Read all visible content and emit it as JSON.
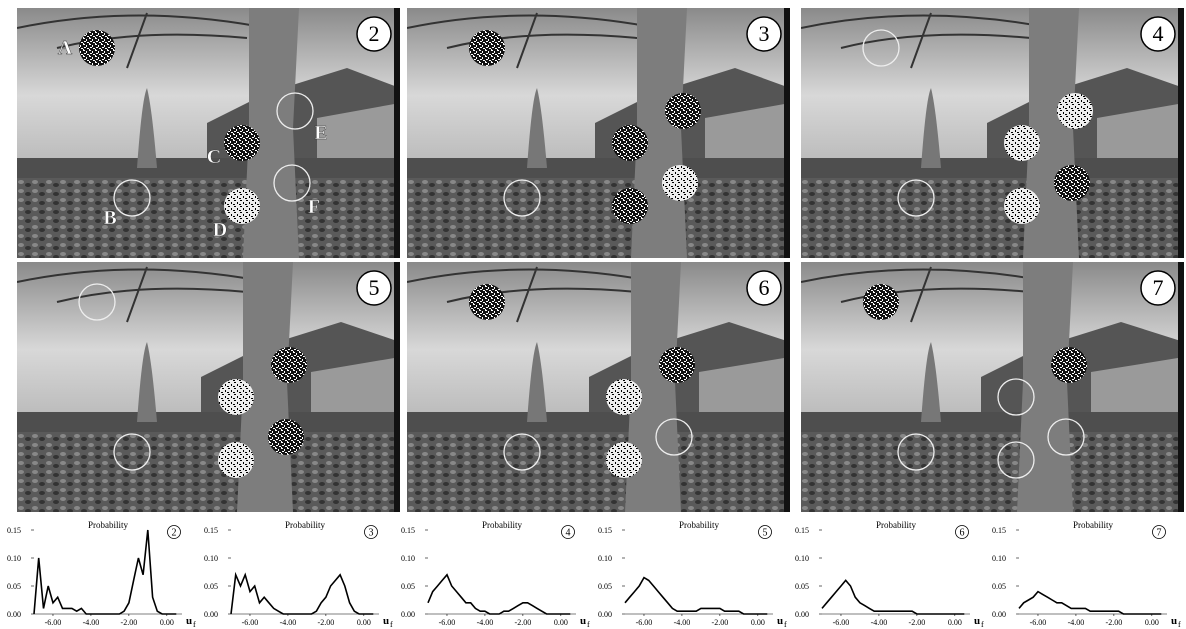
{
  "frames": [
    {
      "number": "2",
      "point_labels": [
        "A",
        "B",
        "C",
        "D",
        "E",
        "F"
      ]
    },
    {
      "number": "3"
    },
    {
      "number": "4"
    },
    {
      "number": "5"
    },
    {
      "number": "6"
    },
    {
      "number": "7"
    }
  ],
  "chart_data": [
    {
      "type": "line",
      "title": "Probability",
      "panel_number": "2",
      "xlabel": "u",
      "xlabel_subscript": "f",
      "x": [
        -7,
        -6.75,
        -6.5,
        -6.25,
        -6,
        -5.75,
        -5.5,
        -5.25,
        -5,
        -4.75,
        -4.5,
        -4.25,
        -4,
        -3.75,
        -3.5,
        -3.25,
        -3,
        -2.75,
        -2.5,
        -2.25,
        -2,
        -1.75,
        -1.5,
        -1.25,
        -1,
        -0.75,
        -0.5,
        -0.25,
        0,
        0.25,
        0.5
      ],
      "series": [
        {
          "color": "#000000",
          "values": [
            0,
            0.1,
            0.01,
            0.05,
            0.02,
            0.03,
            0.01,
            0.01,
            0.01,
            0.005,
            0.01,
            0,
            0,
            0,
            0,
            0,
            0,
            0,
            0,
            0.005,
            0.02,
            0.06,
            0.1,
            0.07,
            0.15,
            0.03,
            0.005,
            0,
            0,
            0,
            0
          ]
        }
      ],
      "xlim": [
        -7,
        0.8
      ],
      "ylim": [
        0,
        0.15
      ],
      "xticks": [
        {
          "value": -6,
          "label": "-6.00"
        },
        {
          "value": -4,
          "label": "-4.00"
        },
        {
          "value": -2,
          "label": "-2.00"
        },
        {
          "value": 0,
          "label": "0.00"
        }
      ],
      "yticks": [
        {
          "value": 0,
          "label": "0.00"
        },
        {
          "value": 0.05,
          "label": "0.05"
        },
        {
          "value": 0.1,
          "label": "0.10"
        },
        {
          "value": 0.15,
          "label": "0.15"
        }
      ]
    },
    {
      "type": "line",
      "title": "Probability",
      "panel_number": "3",
      "xlabel": "u",
      "xlabel_subscript": "f",
      "x": [
        -7,
        -6.75,
        -6.5,
        -6.25,
        -6,
        -5.75,
        -5.5,
        -5.25,
        -5,
        -4.75,
        -4.5,
        -4.25,
        -4,
        -3.75,
        -3.5,
        -3.25,
        -3,
        -2.75,
        -2.5,
        -2.25,
        -2,
        -1.75,
        -1.5,
        -1.25,
        -1,
        -0.75,
        -0.5,
        -0.25,
        0,
        0.25,
        0.5
      ],
      "series": [
        {
          "color": "#000000",
          "values": [
            0,
            0.07,
            0.05,
            0.07,
            0.04,
            0.05,
            0.02,
            0.03,
            0.02,
            0.01,
            0.005,
            0,
            0,
            0,
            0,
            0,
            0,
            0,
            0.005,
            0.02,
            0.03,
            0.05,
            0.06,
            0.07,
            0.05,
            0.02,
            0.005,
            0,
            0,
            0,
            0
          ]
        }
      ],
      "xlim": [
        -7,
        0.8
      ],
      "ylim": [
        0,
        0.15
      ],
      "xticks": [
        {
          "value": -6,
          "label": "-6.00"
        },
        {
          "value": -4,
          "label": "-4.00"
        },
        {
          "value": -2,
          "label": "-2.00"
        },
        {
          "value": 0,
          "label": "0.00"
        }
      ],
      "yticks": [
        {
          "value": 0,
          "label": "0.00"
        },
        {
          "value": 0.05,
          "label": "0.05"
        },
        {
          "value": 0.1,
          "label": "0.10"
        },
        {
          "value": 0.15,
          "label": "0.15"
        }
      ]
    },
    {
      "type": "line",
      "title": "Probability",
      "panel_number": "4",
      "xlabel": "u",
      "xlabel_subscript": "f",
      "x": [
        -7,
        -6.75,
        -6.5,
        -6.25,
        -6,
        -5.75,
        -5.5,
        -5.25,
        -5,
        -4.75,
        -4.5,
        -4.25,
        -4,
        -3.75,
        -3.5,
        -3.25,
        -3,
        -2.75,
        -2.5,
        -2.25,
        -2,
        -1.75,
        -1.5,
        -1.25,
        -1,
        -0.75,
        -0.5,
        -0.25,
        0,
        0.25,
        0.5
      ],
      "series": [
        {
          "color": "#000000",
          "values": [
            0.02,
            0.04,
            0.05,
            0.06,
            0.07,
            0.05,
            0.04,
            0.03,
            0.02,
            0.02,
            0.01,
            0.005,
            0.005,
            0,
            0,
            0,
            0.005,
            0.005,
            0.01,
            0.015,
            0.02,
            0.02,
            0.015,
            0.01,
            0.005,
            0,
            0,
            0,
            0,
            0,
            0
          ]
        }
      ],
      "xlim": [
        -7,
        0.8
      ],
      "ylim": [
        0,
        0.15
      ],
      "xticks": [
        {
          "value": -6,
          "label": "-6.00"
        },
        {
          "value": -4,
          "label": "-4.00"
        },
        {
          "value": -2,
          "label": "-2.00"
        },
        {
          "value": 0,
          "label": "0.00"
        }
      ],
      "yticks": [
        {
          "value": 0,
          "label": "0.00"
        },
        {
          "value": 0.05,
          "label": "0.05"
        },
        {
          "value": 0.1,
          "label": "0.10"
        },
        {
          "value": 0.15,
          "label": "0.15"
        }
      ]
    },
    {
      "type": "line",
      "title": "Probability",
      "panel_number": "5",
      "xlabel": "u",
      "xlabel_subscript": "f",
      "x": [
        -7,
        -6.75,
        -6.5,
        -6.25,
        -6,
        -5.75,
        -5.5,
        -5.25,
        -5,
        -4.75,
        -4.5,
        -4.25,
        -4,
        -3.75,
        -3.5,
        -3.25,
        -3,
        -2.75,
        -2.5,
        -2.25,
        -2,
        -1.75,
        -1.5,
        -1.25,
        -1,
        -0.75,
        -0.5,
        -0.25,
        0,
        0.25,
        0.5
      ],
      "series": [
        {
          "color": "#000000",
          "values": [
            0.02,
            0.03,
            0.04,
            0.05,
            0.065,
            0.06,
            0.05,
            0.04,
            0.03,
            0.02,
            0.01,
            0.005,
            0.005,
            0.005,
            0.005,
            0.005,
            0.01,
            0.01,
            0.01,
            0.01,
            0.01,
            0.005,
            0.005,
            0.005,
            0.005,
            0,
            0,
            0,
            0,
            0,
            0
          ]
        }
      ],
      "xlim": [
        -7,
        0.8
      ],
      "ylim": [
        0,
        0.15
      ],
      "xticks": [
        {
          "value": -6,
          "label": "-6.00"
        },
        {
          "value": -4,
          "label": "-4.00"
        },
        {
          "value": -2,
          "label": "-2.00"
        },
        {
          "value": 0,
          "label": "0.00"
        }
      ],
      "yticks": [
        {
          "value": 0,
          "label": "0.00"
        },
        {
          "value": 0.05,
          "label": "0.05"
        },
        {
          "value": 0.1,
          "label": "0.10"
        },
        {
          "value": 0.15,
          "label": "0.15"
        }
      ]
    },
    {
      "type": "line",
      "title": "Probability",
      "panel_number": "6",
      "xlabel": "u",
      "xlabel_subscript": "f",
      "x": [
        -7,
        -6.75,
        -6.5,
        -6.25,
        -6,
        -5.75,
        -5.5,
        -5.25,
        -5,
        -4.75,
        -4.5,
        -4.25,
        -4,
        -3.75,
        -3.5,
        -3.25,
        -3,
        -2.75,
        -2.5,
        -2.25,
        -2,
        -1.75,
        -1.5,
        -1.25,
        -1,
        -0.75,
        -0.5,
        -0.25,
        0,
        0.25,
        0.5
      ],
      "series": [
        {
          "color": "#000000",
          "values": [
            0.01,
            0.02,
            0.03,
            0.04,
            0.05,
            0.06,
            0.05,
            0.03,
            0.02,
            0.015,
            0.01,
            0.005,
            0.005,
            0.005,
            0.005,
            0.005,
            0.005,
            0.005,
            0.005,
            0.005,
            0,
            0,
            0,
            0,
            0,
            0,
            0,
            0,
            0,
            0,
            0
          ]
        }
      ],
      "xlim": [
        -7,
        0.8
      ],
      "ylim": [
        0,
        0.15
      ],
      "xticks": [
        {
          "value": -6,
          "label": "-6.00"
        },
        {
          "value": -4,
          "label": "-4.00"
        },
        {
          "value": -2,
          "label": "-2.00"
        },
        {
          "value": 0,
          "label": "0.00"
        }
      ],
      "yticks": [
        {
          "value": 0,
          "label": "0.00"
        },
        {
          "value": 0.05,
          "label": "0.05"
        },
        {
          "value": 0.1,
          "label": "0.10"
        },
        {
          "value": 0.15,
          "label": "0.15"
        }
      ]
    },
    {
      "type": "line",
      "title": "Probability",
      "panel_number": "7",
      "xlabel": "u",
      "xlabel_subscript": "f",
      "x": [
        -7,
        -6.75,
        -6.5,
        -6.25,
        -6,
        -5.75,
        -5.5,
        -5.25,
        -5,
        -4.75,
        -4.5,
        -4.25,
        -4,
        -3.75,
        -3.5,
        -3.25,
        -3,
        -2.75,
        -2.5,
        -2.25,
        -2,
        -1.75,
        -1.5,
        -1.25,
        -1,
        -0.75,
        -0.5,
        -0.25,
        0,
        0.25,
        0.5
      ],
      "series": [
        {
          "color": "#000000",
          "values": [
            0.01,
            0.02,
            0.025,
            0.03,
            0.04,
            0.035,
            0.03,
            0.025,
            0.02,
            0.02,
            0.015,
            0.01,
            0.01,
            0.01,
            0.01,
            0.005,
            0.005,
            0.005,
            0.005,
            0.005,
            0.005,
            0.005,
            0,
            0,
            0,
            0,
            0,
            0,
            0,
            0,
            0
          ]
        }
      ],
      "xlim": [
        -7,
        0.8
      ],
      "ylim": [
        0,
        0.15
      ],
      "xticks": [
        {
          "value": -6,
          "label": "-6.00"
        },
        {
          "value": -4,
          "label": "-4.00"
        },
        {
          "value": -2,
          "label": "-2.00"
        },
        {
          "value": 0,
          "label": "0.00"
        }
      ],
      "yticks": [
        {
          "value": 0,
          "label": "0.00"
        },
        {
          "value": 0.05,
          "label": "0.05"
        },
        {
          "value": 0.1,
          "label": "0.10"
        },
        {
          "value": 0.15,
          "label": "0.15"
        }
      ]
    }
  ]
}
